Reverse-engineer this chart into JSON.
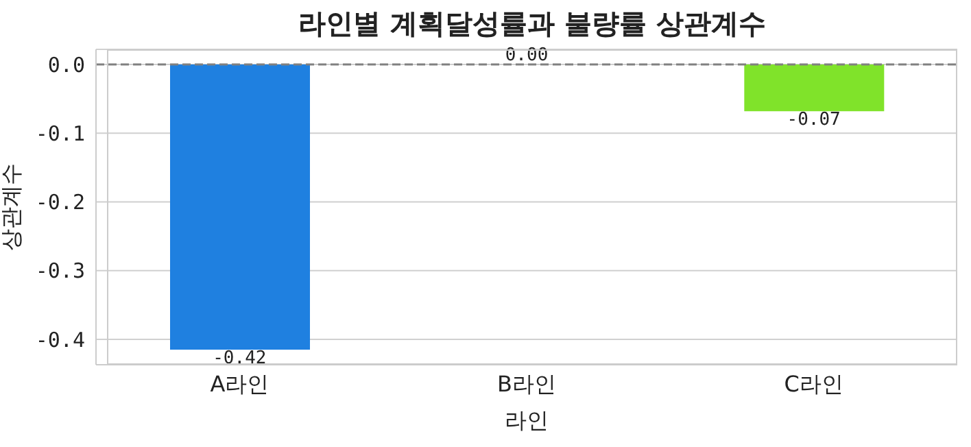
{
  "chart_data": {
    "type": "bar",
    "title": "라인별 계획달성률과 불량률 상관계수",
    "xlabel": "라인",
    "ylabel": "상관계수",
    "categories": [
      "A라인",
      "B라인",
      "C라인"
    ],
    "values": [
      -0.415,
      0.0,
      -0.068
    ],
    "value_labels": [
      "-0.42",
      "0.00",
      "-0.07"
    ],
    "colors": [
      "#1f80e0",
      "#8ab4e8",
      "#80e32a"
    ],
    "ylim": [
      -0.437,
      0.022
    ],
    "yticks": [
      {
        "value": -0.4,
        "label": "-0.4"
      },
      {
        "value": -0.3,
        "label": "-0.3"
      },
      {
        "value": -0.2,
        "label": "-0.2"
      },
      {
        "value": -0.1,
        "label": "-0.1"
      },
      {
        "value": 0,
        "label": "0.0"
      }
    ],
    "grid": "y",
    "ref_lines": [
      {
        "axis": "y",
        "value": 0,
        "color": "#808080",
        "line_style": "dashed"
      }
    ]
  }
}
